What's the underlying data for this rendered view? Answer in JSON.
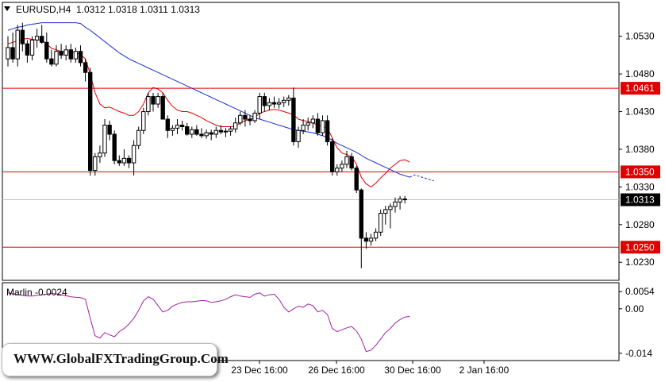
{
  "chart_data": [
    {
      "type": "candlestick",
      "symbol_label": "EURUSD,H4",
      "ohlc_label": "1.0312 1.0318 1.0311 1.0313",
      "x_ticks": [
        "23 Dec 16:00",
        "26 Dec 16:00",
        "30 Dec 16:00",
        "2 Jan 16:00"
      ],
      "y_ticks": [
        1.053,
        1.048,
        1.043,
        1.038,
        1.033,
        1.028,
        1.023
      ],
      "ylim": [
        1.0206,
        1.0575
      ],
      "levels": [
        {
          "value": 1.0461,
          "label": "1.0461",
          "color": "#e00000"
        },
        {
          "value": 1.035,
          "label": "1.0350",
          "color": "#e00000"
        },
        {
          "value": 1.025,
          "label": "1.0250",
          "color": "#e00000"
        }
      ],
      "current_price": {
        "value": 1.0313,
        "label": "1.0313"
      },
      "candles": [
        [
          1.05,
          1.053,
          1.049,
          1.0515
        ],
        [
          1.0515,
          1.0535,
          1.0495,
          1.05
        ],
        [
          1.05,
          1.0545,
          1.049,
          1.0538
        ],
        [
          1.0538,
          1.0548,
          1.051,
          1.052
        ],
        [
          1.052,
          1.0525,
          1.0495,
          1.0505
        ],
        [
          1.0505,
          1.053,
          1.0498,
          1.0525
        ],
        [
          1.0525,
          1.054,
          1.0515,
          1.053
        ],
        [
          1.053,
          1.0545,
          1.052,
          1.0522
        ],
        [
          1.0522,
          1.0535,
          1.0495,
          1.05
        ],
        [
          1.05,
          1.0512,
          1.049,
          1.0493
        ],
        [
          1.0493,
          1.0518,
          1.049,
          1.051
        ],
        [
          1.051,
          1.052,
          1.05,
          1.0505
        ],
        [
          1.0505,
          1.0518,
          1.0498,
          1.0512
        ],
        [
          1.0512,
          1.052,
          1.0495,
          1.05
        ],
        [
          1.05,
          1.0515,
          1.0495,
          1.051
        ],
        [
          1.051,
          1.0518,
          1.049,
          1.0495
        ],
        [
          1.0495,
          1.05,
          1.047,
          1.0482
        ],
        [
          1.0482,
          1.0488,
          1.0345,
          1.0352
        ],
        [
          1.0352,
          1.0375,
          1.0345,
          1.037
        ],
        [
          1.037,
          1.0385,
          1.0362,
          1.0375
        ],
        [
          1.0375,
          1.042,
          1.037,
          1.0412
        ],
        [
          1.0412,
          1.0418,
          1.0392,
          1.04
        ],
        [
          1.04,
          1.0405,
          1.036,
          1.0365
        ],
        [
          1.0365,
          1.0372,
          1.0358,
          1.0362
        ],
        [
          1.0362,
          1.038,
          1.0358,
          1.0368
        ],
        [
          1.0368,
          1.0372,
          1.0355,
          1.0362
        ],
        [
          1.0362,
          1.0392,
          1.0345,
          1.0385
        ],
        [
          1.0385,
          1.041,
          1.038,
          1.0405
        ],
        [
          1.0405,
          1.0435,
          1.04,
          1.043
        ],
        [
          1.043,
          1.0455,
          1.0425,
          1.045
        ],
        [
          1.045,
          1.0455,
          1.043,
          1.044
        ],
        [
          1.044,
          1.0455,
          1.0435,
          1.045
        ],
        [
          1.045,
          1.0455,
          1.042,
          1.042
        ],
        [
          1.042,
          1.0425,
          1.0395,
          1.0405
        ],
        [
          1.0405,
          1.0412,
          1.0398,
          1.0408
        ],
        [
          1.0408,
          1.042,
          1.04,
          1.0412
        ],
        [
          1.0412,
          1.0418,
          1.0405,
          1.041
        ],
        [
          1.041,
          1.0415,
          1.0398,
          1.04
        ],
        [
          1.04,
          1.041,
          1.0395,
          1.0406
        ],
        [
          1.0406,
          1.0412,
          1.0398,
          1.04
        ],
        [
          1.04,
          1.0408,
          1.0395,
          1.0398
        ],
        [
          1.0398,
          1.0406,
          1.0394,
          1.0402
        ],
        [
          1.0402,
          1.0406,
          1.0392,
          1.04
        ],
        [
          1.04,
          1.041,
          1.0395,
          1.0405
        ],
        [
          1.0405,
          1.0412,
          1.04,
          1.0403
        ],
        [
          1.0403,
          1.0408,
          1.0396,
          1.0404
        ],
        [
          1.0404,
          1.041,
          1.0398,
          1.0407
        ],
        [
          1.0407,
          1.0422,
          1.0402,
          1.0415
        ],
        [
          1.0415,
          1.043,
          1.0412,
          1.0425
        ],
        [
          1.0425,
          1.0432,
          1.041,
          1.042
        ],
        [
          1.042,
          1.0425,
          1.0412,
          1.0418
        ],
        [
          1.0418,
          1.0432,
          1.0415,
          1.0428
        ],
        [
          1.0428,
          1.0455,
          1.042,
          1.045
        ],
        [
          1.045,
          1.0455,
          1.043,
          1.0438
        ],
        [
          1.0438,
          1.0448,
          1.0432,
          1.0442
        ],
        [
          1.0442,
          1.045,
          1.0435,
          1.044
        ],
        [
          1.044,
          1.0448,
          1.0434,
          1.0442
        ],
        [
          1.0442,
          1.045,
          1.0436,
          1.0445
        ],
        [
          1.0445,
          1.0452,
          1.0438,
          1.0448
        ],
        [
          1.0448,
          1.0462,
          1.0385,
          1.039
        ],
        [
          1.039,
          1.041,
          1.0382,
          1.0405
        ],
        [
          1.0405,
          1.042,
          1.04,
          1.0412
        ],
        [
          1.0412,
          1.0422,
          1.0405,
          1.0415
        ],
        [
          1.0415,
          1.0425,
          1.0408,
          1.042
        ],
        [
          1.042,
          1.0428,
          1.0398,
          1.0402
        ],
        [
          1.0402,
          1.0425,
          1.0398,
          1.0418
        ],
        [
          1.0418,
          1.0425,
          1.0385,
          1.039
        ],
        [
          1.039,
          1.0395,
          1.0345,
          1.035
        ],
        [
          1.035,
          1.036,
          1.0345,
          1.0355
        ],
        [
          1.0355,
          1.0365,
          1.035,
          1.036
        ],
        [
          1.036,
          1.0378,
          1.0355,
          1.037
        ],
        [
          1.037,
          1.0375,
          1.0352,
          1.0355
        ],
        [
          1.0355,
          1.0358,
          1.0322,
          1.0326
        ],
        [
          1.0326,
          1.0328,
          1.0222,
          1.0262
        ],
        [
          1.0262,
          1.027,
          1.0248,
          1.0258
        ],
        [
          1.0258,
          1.0268,
          1.0252,
          1.0262
        ],
        [
          1.0262,
          1.0275,
          1.0258,
          1.027
        ],
        [
          1.027,
          1.03,
          1.0265,
          1.0295
        ],
        [
          1.0295,
          1.0305,
          1.028,
          1.03
        ],
        [
          1.03,
          1.0308,
          1.0275,
          1.0304
        ],
        [
          1.0304,
          1.0316,
          1.0296,
          1.031
        ],
        [
          1.031,
          1.0318,
          1.03,
          1.0314
        ],
        [
          1.0314,
          1.0318,
          1.0308,
          1.0313
        ]
      ],
      "ma_red": [
        1.052,
        1.0522,
        1.0524,
        1.0526,
        1.0527,
        1.0526,
        1.0525,
        1.0525,
        1.052,
        1.0514,
        1.0512,
        1.051,
        1.051,
        1.0509,
        1.0508,
        1.0506,
        1.05,
        1.048,
        1.0455,
        1.044,
        1.0435,
        1.0436,
        1.0433,
        1.043,
        1.0428,
        1.0425,
        1.0425,
        1.043,
        1.044,
        1.0455,
        1.0462,
        1.046,
        1.0455,
        1.0445,
        1.0437,
        1.0432,
        1.043,
        1.043,
        1.0428,
        1.0425,
        1.0422,
        1.0418,
        1.0415,
        1.0412,
        1.041,
        1.041,
        1.041,
        1.0411,
        1.0415,
        1.0418,
        1.042,
        1.0422,
        1.0428,
        1.043,
        1.0432,
        1.0433,
        1.0432,
        1.043,
        1.0428,
        1.0426,
        1.042,
        1.0418,
        1.0417,
        1.0415,
        1.0412,
        1.041,
        1.0408,
        1.0395,
        1.0382,
        1.0375,
        1.0373,
        1.037,
        1.036,
        1.0343,
        1.0334,
        1.033,
        1.0335,
        1.0342,
        1.0348,
        1.0355,
        1.036,
        1.0365,
        1.0366,
        1.0363
      ],
      "ma_blue": [
        1.0538,
        1.054,
        1.0542,
        1.0543,
        1.0545,
        1.0546,
        1.0547,
        1.0548,
        1.0548,
        1.0548,
        1.0548,
        1.0548,
        1.0548,
        1.0548,
        1.0548,
        1.0547,
        1.0542,
        1.0538,
        1.0533,
        1.0528,
        1.0523,
        1.0518,
        1.0513,
        1.0508,
        1.0504,
        1.05,
        1.0497,
        1.0494,
        1.0491,
        1.0488,
        1.0485,
        1.0482,
        1.0479,
        1.0476,
        1.0473,
        1.047,
        1.0467,
        1.0464,
        1.0461,
        1.0458,
        1.0455,
        1.0452,
        1.0449,
        1.0446,
        1.0443,
        1.044,
        1.0437,
        1.0434,
        1.0431,
        1.0428,
        1.0425,
        1.0422,
        1.042,
        1.0418,
        1.0416,
        1.0414,
        1.0412,
        1.041,
        1.0408,
        1.0406,
        1.0405,
        1.0404,
        1.0403,
        1.0402,
        1.04,
        1.0398,
        1.0396,
        1.0392,
        1.0388,
        1.0385,
        1.0382,
        1.0379,
        1.0376,
        1.0372,
        1.0368,
        1.0365,
        1.0362,
        1.0359,
        1.0356,
        1.0353,
        1.035,
        1.0347,
        1.0345,
        1.0343
      ],
      "ma_blue_projection": [
        1.0346,
        1.0344,
        1.0342,
        1.034,
        1.0338
      ]
    },
    {
      "type": "line",
      "label": "Marlin -0.0024",
      "y_ticks": [
        0.0054,
        0.0,
        -0.014
      ],
      "y_tick_labels": [
        "0.0054",
        "0.00",
        "-0.014"
      ],
      "ylim": [
        -0.0163,
        0.0082
      ],
      "color": "#a020a0",
      "values": [
        0.005,
        0.0047,
        0.0045,
        0.0042,
        0.004,
        0.004,
        0.0042,
        0.0044,
        0.0046,
        0.0048,
        0.0047,
        0.0044,
        0.0041,
        0.0038,
        0.0036,
        0.0035,
        0.003,
        -0.003,
        -0.0085,
        -0.0092,
        -0.0075,
        -0.0082,
        -0.0088,
        -0.0072,
        -0.0062,
        -0.0048,
        -0.003,
        -0.0005,
        0.0025,
        0.0038,
        0.003,
        0.001,
        -0.001,
        -0.0005,
        0.0008,
        0.0015,
        0.002,
        0.0022,
        0.0022,
        0.0024,
        0.0026,
        0.0025,
        0.002,
        0.0022,
        0.0025,
        0.003,
        0.0038,
        0.0044,
        0.004,
        0.0038,
        0.0036,
        0.0046,
        0.005,
        0.004,
        0.0044,
        0.0046,
        0.003,
        0.0005,
        -0.001,
        0.0,
        0.0008,
        0.0005,
        0.0015,
        0.001,
        -0.001,
        -0.0005,
        -0.0018,
        -0.0062,
        -0.0072,
        -0.0066,
        -0.006,
        -0.0056,
        -0.007,
        -0.0095,
        -0.0135,
        -0.013,
        -0.0115,
        -0.0095,
        -0.0075,
        -0.0062,
        -0.0045,
        -0.0034,
        -0.0026,
        -0.0024
      ]
    }
  ],
  "watermark": "WWW.GlobalFXTradingGroup.Com"
}
